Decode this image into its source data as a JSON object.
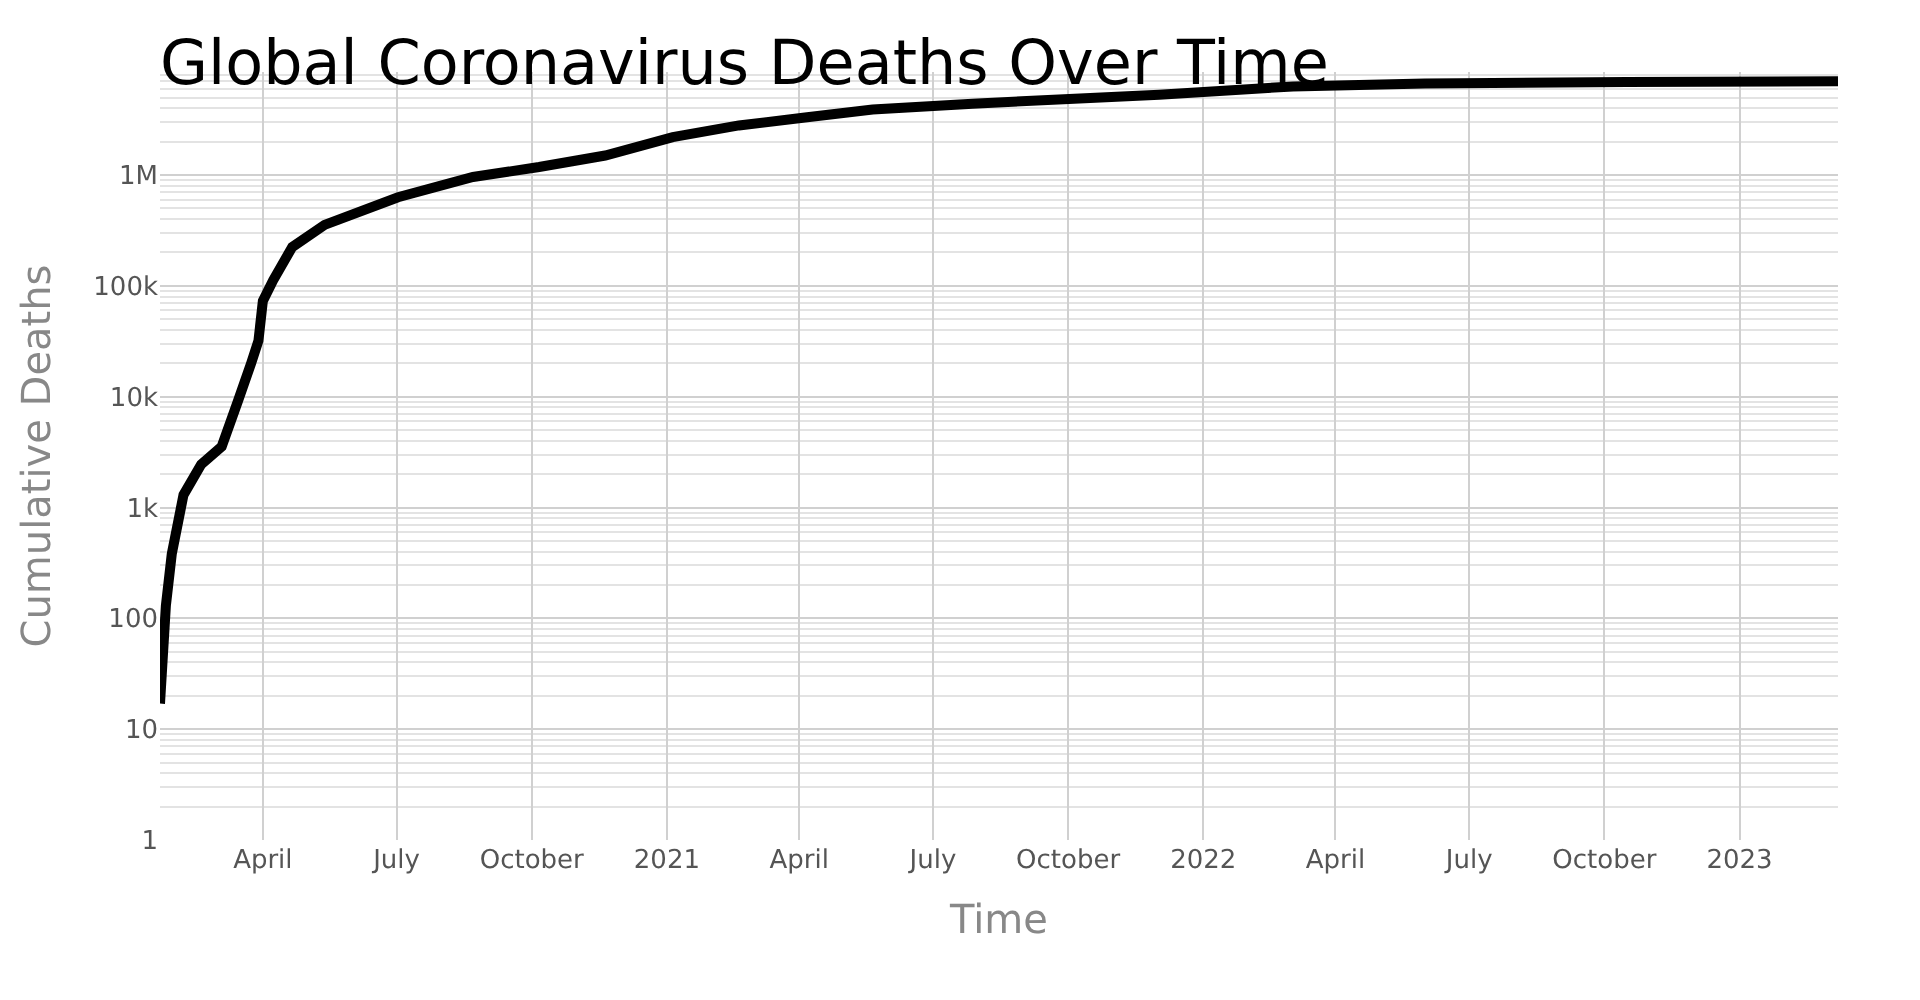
{
  "chart_data": {
    "type": "line",
    "title": "Global Coronavirus Deaths Over Time",
    "xlabel": "Time",
    "ylabel": "Cumulative Deaths",
    "x": [
      "2020-01-22",
      "2020-01-26",
      "2020-01-30",
      "2020-02-07",
      "2020-02-19",
      "2020-03-04",
      "2020-03-15",
      "2020-03-24",
      "2020-03-29",
      "2020-04-01",
      "2020-04-08",
      "2020-04-21",
      "2020-05-13",
      "2020-07-02",
      "2020-08-22",
      "2020-10-06",
      "2020-11-20",
      "2021-01-05",
      "2021-02-19",
      "2021-04-05",
      "2021-05-21",
      "2021-07-28",
      "2021-12-02",
      "2022-03-03",
      "2022-06-01",
      "2022-10-16",
      "2023-03-09"
    ],
    "series": [
      {
        "color": "#000000",
        "values": [
          17,
          130,
          380,
          1300,
          2450,
          3550,
          9100,
          20000,
          32000,
          73000,
          112000,
          224000,
          355000,
          630000,
          960000,
          1180000,
          1500000,
          2200000,
          2800000,
          3300000,
          3900000,
          4400000,
          5300000,
          6300000,
          6700000,
          6900000,
          7000000
        ]
      }
    ],
    "xlim": [
      "2020-01-22",
      "2023-03-09"
    ],
    "ylim": [
      1,
      8500000
    ],
    "log": "y",
    "grid": true,
    "marker": "none",
    "line_style": "solid",
    "xticks": [
      {
        "value": "2020-04-01",
        "label": "April"
      },
      {
        "value": "2020-07-01",
        "label": "July"
      },
      {
        "value": "2020-10-01",
        "label": "October"
      },
      {
        "value": "2021-01-01",
        "label": "2021"
      },
      {
        "value": "2021-04-01",
        "label": "April"
      },
      {
        "value": "2021-07-01",
        "label": "July"
      },
      {
        "value": "2021-10-01",
        "label": "October"
      },
      {
        "value": "2022-01-01",
        "label": "2022"
      },
      {
        "value": "2022-04-01",
        "label": "April"
      },
      {
        "value": "2022-07-01",
        "label": "July"
      },
      {
        "value": "2022-10-01",
        "label": "October"
      },
      {
        "value": "2023-01-01",
        "label": "2023"
      }
    ],
    "yticks": [
      1,
      10,
      100,
      {
        "value": 1000,
        "label": "1k"
      },
      {
        "value": 10000,
        "label": "10k"
      },
      {
        "value": 100000,
        "label": "100k"
      },
      {
        "value": 1000000,
        "label": "1M"
      }
    ]
  }
}
